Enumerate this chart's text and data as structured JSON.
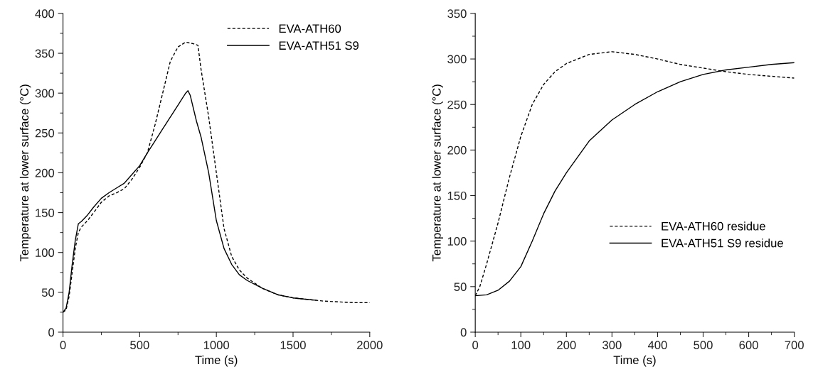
{
  "chart_data": [
    {
      "type": "line",
      "xlabel": "Time (s)",
      "ylabel": "Temperature at lower surface (°C)",
      "xlim": [
        0,
        2000
      ],
      "xticks": [
        0,
        500,
        1000,
        1500,
        2000
      ],
      "ylim": [
        0,
        400
      ],
      "yticks": [
        0,
        50,
        100,
        150,
        200,
        250,
        300,
        350,
        400
      ],
      "legend": "top right",
      "grid": false,
      "series": [
        {
          "name": "EVA-ATH60",
          "color": "#000000",
          "line_style": "dashed",
          "x": [
            0,
            20,
            40,
            60,
            80,
            100,
            120,
            160,
            200,
            250,
            300,
            350,
            400,
            450,
            500,
            550,
            600,
            650,
            700,
            750,
            800,
            850,
            880,
            900,
            950,
            1000,
            1050,
            1100,
            1150,
            1200,
            1300,
            1400,
            1500,
            1600,
            1700,
            1800,
            1900,
            2000
          ],
          "values": [
            25,
            28,
            45,
            75,
            105,
            125,
            132,
            140,
            150,
            163,
            171,
            175,
            180,
            192,
            207,
            225,
            260,
            300,
            340,
            358,
            364,
            362,
            360,
            330,
            270,
            200,
            130,
            95,
            78,
            68,
            55,
            47,
            43,
            41,
            39,
            38,
            37,
            37
          ]
        },
        {
          "name": "EVA-ATH51 S9",
          "color": "#000000",
          "line_style": "solid",
          "x": [
            0,
            20,
            40,
            60,
            80,
            100,
            120,
            160,
            200,
            250,
            300,
            350,
            400,
            450,
            500,
            550,
            600,
            650,
            700,
            750,
            800,
            815,
            830,
            870,
            900,
            950,
            1000,
            1050,
            1100,
            1150,
            1200,
            1300,
            1400,
            1500,
            1600,
            1650
          ],
          "values": [
            25,
            30,
            50,
            85,
            115,
            136,
            139,
            147,
            157,
            168,
            175,
            181,
            187,
            198,
            209,
            225,
            240,
            255,
            270,
            285,
            300,
            303,
            297,
            265,
            245,
            200,
            140,
            105,
            85,
            72,
            65,
            55,
            47,
            43,
            41,
            40
          ]
        }
      ]
    },
    {
      "type": "line",
      "xlabel": "Time (s)",
      "ylabel": "Temperature at lower surface (°C)",
      "xlim": [
        0,
        700
      ],
      "xticks": [
        0,
        100,
        200,
        300,
        400,
        500,
        600,
        700
      ],
      "ylim": [
        0,
        350
      ],
      "yticks": [
        0,
        50,
        100,
        150,
        200,
        250,
        300,
        350
      ],
      "legend": "right",
      "grid": false,
      "series": [
        {
          "name": "EVA-ATH60 residue",
          "color": "#000000",
          "line_style": "dashed",
          "x": [
            0,
            10,
            25,
            50,
            75,
            100,
            125,
            150,
            175,
            200,
            250,
            300,
            350,
            400,
            450,
            500,
            550,
            600,
            650,
            700
          ],
          "values": [
            40,
            50,
            75,
            120,
            170,
            215,
            250,
            272,
            286,
            295,
            305,
            308,
            305,
            300,
            294,
            290,
            286,
            283,
            281,
            279
          ]
        },
        {
          "name": "EVA-ATH51 S9 residue",
          "color": "#000000",
          "line_style": "solid",
          "x": [
            0,
            25,
            50,
            75,
            100,
            125,
            150,
            175,
            200,
            250,
            300,
            350,
            400,
            450,
            500,
            550,
            600,
            650,
            700
          ],
          "values": [
            40,
            41,
            46,
            56,
            72,
            100,
            130,
            155,
            175,
            210,
            233,
            250,
            264,
            275,
            283,
            288,
            291,
            294,
            296
          ]
        }
      ]
    }
  ]
}
